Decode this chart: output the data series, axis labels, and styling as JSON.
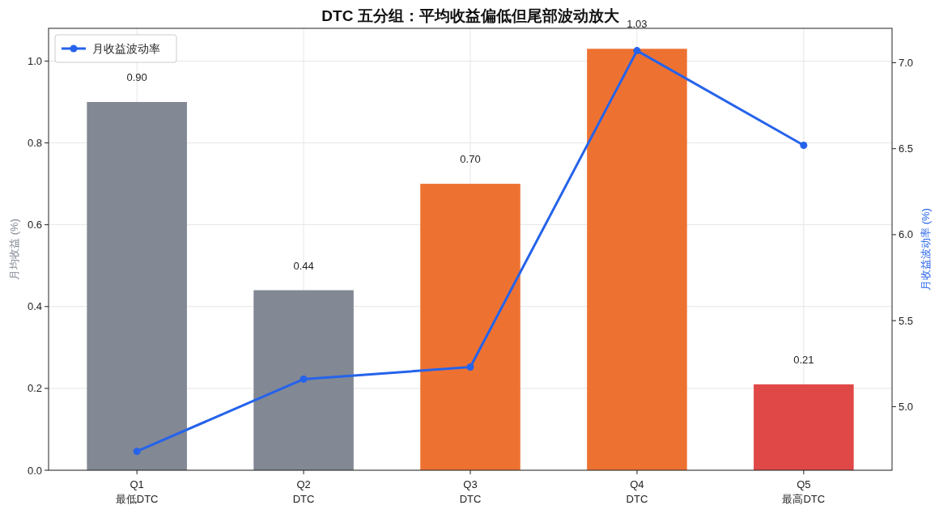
{
  "chart_data": {
    "type": "bar",
    "title": "DTC 五分组：平均收益偏低但尾部波动放大",
    "categories": [
      "Q1\n最低DTC",
      "Q2\nDTC",
      "Q3\nDTC",
      "Q4\nDTC",
      "Q5\n最高DTC"
    ],
    "ylabel": "月均收益 (%)",
    "y2label": "月收益波动率 (%)",
    "series": [
      {
        "colors": [
          "#828894",
          "#828894",
          "#ed7232",
          "#ed7232",
          "#e04848"
        ],
        "values": [
          0.9,
          0.44,
          0.7,
          1.03,
          0.21
        ],
        "value_labels": [
          "0.90",
          "0.44",
          "0.70",
          "1.03",
          "0.21"
        ]
      },
      {
        "type": "line",
        "name": "月收益波动率",
        "color": "#2563eb",
        "axis": "y2",
        "values": [
          4.74,
          5.16,
          5.23,
          7.07,
          6.52
        ]
      }
    ],
    "ylim": [
      0,
      1.08
    ],
    "yticks": [
      {
        "value": 0,
        "label": "0.0"
      },
      {
        "value": 0.2,
        "label": "0.2"
      },
      {
        "value": 0.4,
        "label": "0.4"
      },
      {
        "value": 0.6,
        "label": "0.6"
      },
      {
        "value": 0.8,
        "label": "0.8"
      },
      {
        "value": 1,
        "label": "1.0"
      }
    ],
    "y2lim": [
      4.63,
      7.2
    ],
    "y2ticks": [
      {
        "value": 5,
        "label": "5.0"
      },
      {
        "value": 5.5,
        "label": "5.5"
      },
      {
        "value": 6,
        "label": "6.0"
      },
      {
        "value": 6.5,
        "label": "6.5"
      },
      {
        "value": 7,
        "label": "7.0"
      }
    ],
    "grid": true,
    "legend": "top left",
    "marker": "circle",
    "line_style": "solid"
  }
}
